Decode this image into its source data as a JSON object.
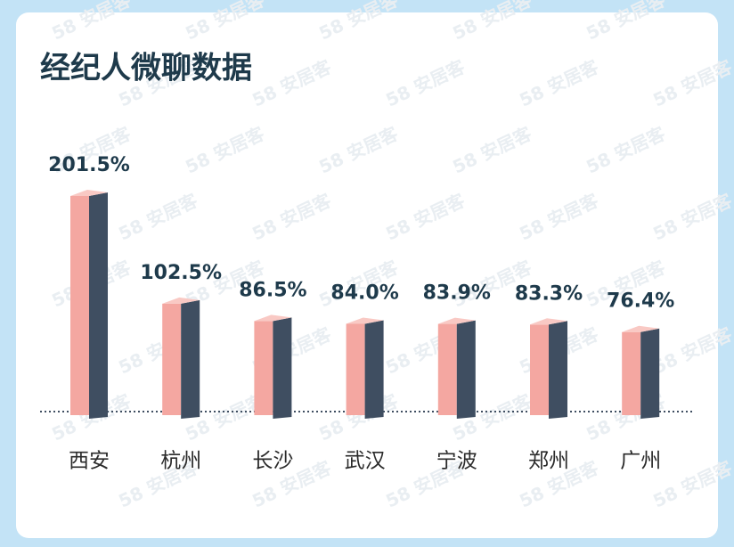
{
  "chart_data": {
    "type": "bar3d",
    "title": "经纪人微聊数据",
    "categories": [
      "西安",
      "杭州",
      "长沙",
      "武汉",
      "宁波",
      "郑州",
      "广州"
    ],
    "values": [
      201.5,
      102.5,
      86.5,
      84.0,
      83.9,
      83.3,
      76.4
    ],
    "value_labels": [
      "201.5%",
      "102.5%",
      "86.5%",
      "84.0%",
      "83.9%",
      "83.3%",
      "76.4%"
    ],
    "color": "#f4a7a1",
    "side_color": "#3f4e61",
    "top_color": "#f9c9c4"
  },
  "watermark": "58 安居客"
}
